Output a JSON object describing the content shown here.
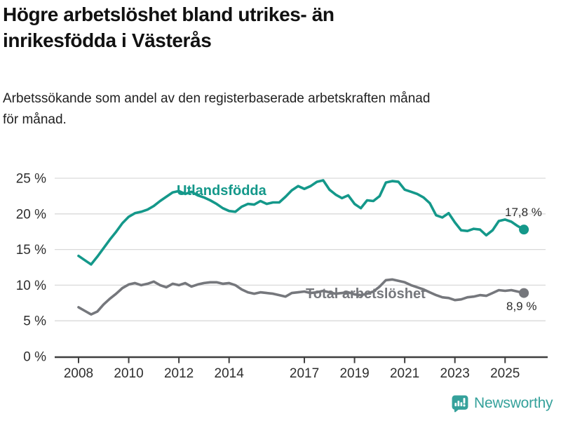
{
  "header": {
    "title": "Högre arbetslöshet bland utrikes- än\ninrikesfödda i Västerås",
    "subtitle": "Arbetssökande som andel av den registerbaserade arbetskraften månad\nför månad."
  },
  "chart_data": {
    "type": "line",
    "title": "Högre arbetslöshet bland utrikes- än inrikesfödda i Västerås",
    "subtitle": "Arbetssökande som andel av den registerbaserade arbetskraften månad för månad.",
    "unit": "%",
    "grid": true,
    "x_start": 2008.0,
    "x_step": 0.25,
    "x_axis": {
      "ticks": [
        2008,
        2010,
        2012,
        2014,
        2017,
        2019,
        2021,
        2023,
        2025
      ]
    },
    "y_axis": {
      "min": 0,
      "max": 25,
      "tick_values": [
        0,
        5,
        10,
        15,
        20,
        25
      ],
      "tick_labels": [
        "0 %",
        "5 %",
        "10 %",
        "15 %",
        "20 %",
        "25 %"
      ]
    },
    "series": [
      {
        "name": "Utlandsfödda",
        "color": "#14988a",
        "end_label": "17,8 %",
        "last_value": 17.8,
        "values": [
          14.1,
          13.5,
          12.9,
          14.0,
          15.2,
          16.4,
          17.5,
          18.7,
          19.6,
          20.1,
          20.3,
          20.6,
          21.1,
          21.8,
          22.4,
          23.0,
          23.2,
          22.8,
          23.1,
          22.6,
          22.3,
          21.9,
          21.4,
          20.8,
          20.4,
          20.3,
          21.0,
          21.4,
          21.3,
          21.8,
          21.4,
          21.6,
          21.6,
          22.4,
          23.3,
          23.9,
          23.5,
          23.9,
          24.5,
          24.7,
          23.4,
          22.7,
          22.2,
          22.6,
          21.4,
          20.8,
          21.9,
          21.8,
          22.5,
          24.4,
          24.6,
          24.5,
          23.4,
          23.1,
          22.8,
          22.3,
          21.5,
          19.8,
          19.5,
          20.1,
          18.8,
          17.7,
          17.6,
          17.9,
          17.8,
          17.0,
          17.7,
          19.0,
          19.2,
          18.9,
          18.3,
          17.8
        ]
      },
      {
        "name": "Total arbetslöshet",
        "color": "#75777c",
        "end_label": "8,9 %",
        "last_value": 8.9,
        "values": [
          6.9,
          6.4,
          5.9,
          6.3,
          7.3,
          8.1,
          8.8,
          9.6,
          10.1,
          10.3,
          10.0,
          10.2,
          10.5,
          10.0,
          9.7,
          10.2,
          10.0,
          10.3,
          9.8,
          10.1,
          10.3,
          10.4,
          10.4,
          10.2,
          10.3,
          10.0,
          9.4,
          9.0,
          8.8,
          9.0,
          8.9,
          8.8,
          8.6,
          8.4,
          8.9,
          9.0,
          9.1,
          8.9,
          9.0,
          9.2,
          9.0,
          8.8,
          8.9,
          9.0,
          8.7,
          8.6,
          8.8,
          9.1,
          9.8,
          10.7,
          10.8,
          10.6,
          10.4,
          10.0,
          9.7,
          9.4,
          9.0,
          8.6,
          8.3,
          8.2,
          7.9,
          8.0,
          8.3,
          8.4,
          8.6,
          8.5,
          8.9,
          9.3,
          9.2,
          9.3,
          9.1,
          8.9
        ]
      }
    ]
  },
  "style": {
    "grid_color": "#d9d9d9",
    "axis_color": "#3f3f3f",
    "tick_label_color": "#2e2e2e"
  },
  "footer": {
    "brand": "Newsworthy",
    "brand_color": "#35a19b"
  }
}
